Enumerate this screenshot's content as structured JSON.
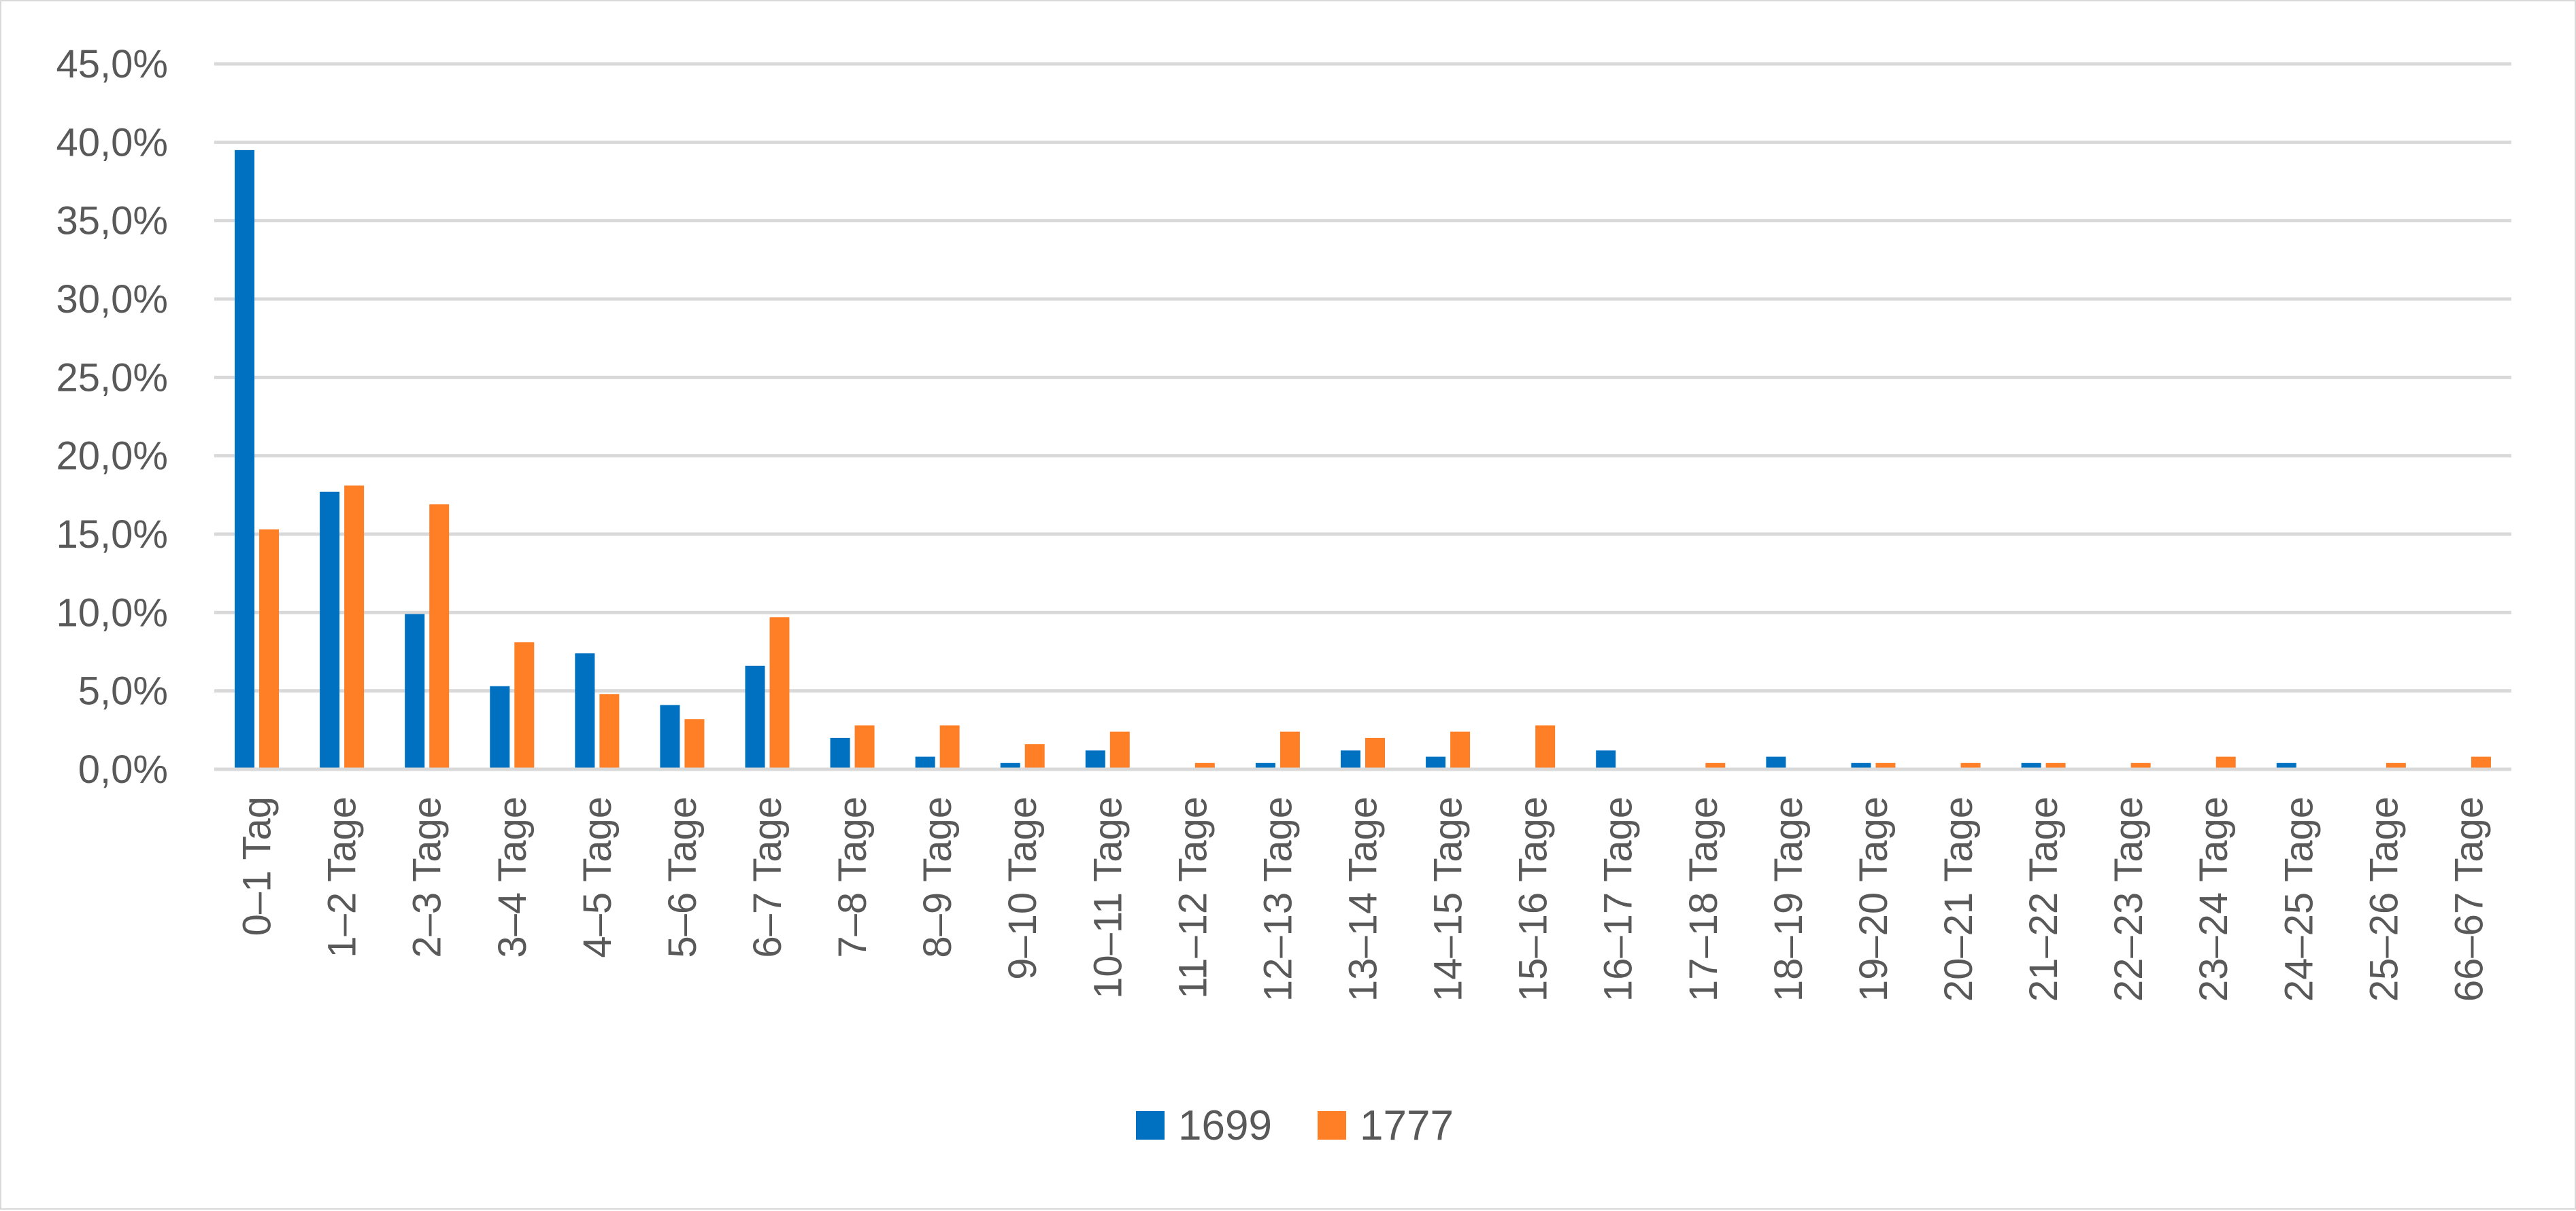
{
  "chart_data": {
    "type": "bar",
    "title": "",
    "xlabel": "",
    "ylabel": "",
    "ylim": [
      0,
      45
    ],
    "y_tick_format": "decimal-comma-percent",
    "y_ticks": [
      "0,0%",
      "5,0%",
      "10,0%",
      "15,0%",
      "20,0%",
      "25,0%",
      "30,0%",
      "35,0%",
      "40,0%",
      "45,0%"
    ],
    "grid": true,
    "legend_position": "bottom",
    "categories": [
      "0–1 Tag",
      "1–2 Tage",
      "2–3 Tage",
      "3–4 Tage",
      "4–5 Tage",
      "5–6 Tage",
      "6–7 Tage",
      "7–8 Tage",
      "8–9 Tage",
      "9–10 Tage",
      "10–11 Tage",
      "11–12 Tage",
      "12–13 Tage",
      "13–14 Tage",
      "14–15 Tage",
      "15–16 Tage",
      "16–17 Tage",
      "17–18 Tage",
      "18–19 Tage",
      "19–20 Tage",
      "20–21 Tage",
      "21–22 Tage",
      "22–23 Tage",
      "23–24 Tage",
      "24–25 Tage",
      "25–26 Tage",
      "66–67 Tage"
    ],
    "series": [
      {
        "name": "1699",
        "color": "#0070C0",
        "values": [
          39.5,
          17.7,
          9.9,
          5.3,
          7.4,
          4.1,
          6.6,
          2.0,
          0.8,
          0.4,
          1.2,
          0.0,
          0.4,
          1.2,
          0.8,
          0.0,
          1.2,
          0.0,
          0.8,
          0.4,
          0.0,
          0.4,
          0.0,
          0.0,
          0.4,
          0.0,
          0.0
        ]
      },
      {
        "name": "1777",
        "color": "#FF7F27",
        "values": [
          15.3,
          18.1,
          16.9,
          8.1,
          4.8,
          3.2,
          9.7,
          2.8,
          2.8,
          1.6,
          2.4,
          0.4,
          2.4,
          2.0,
          2.4,
          2.8,
          0.0,
          0.4,
          0.0,
          0.4,
          0.4,
          0.4,
          0.4,
          0.8,
          0.0,
          0.4,
          0.8
        ]
      }
    ],
    "gridline_color": "#d9d9d9",
    "axis_color": "#d9d9d9"
  }
}
